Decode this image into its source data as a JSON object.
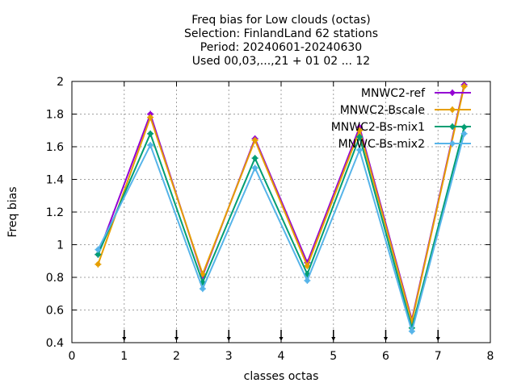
{
  "chart_data": {
    "type": "line",
    "title_lines": [
      "Freq bias  for Low clouds (octas)",
      "Selection: FinlandLand     62 stations",
      "Period: 20240601-20240630",
      "Used 00,03,...,21 + 01 02 ... 12"
    ],
    "xlabel": "classes octas",
    "ylabel": "Freq bias",
    "xlim": [
      0,
      8
    ],
    "ylim": [
      0.4,
      2.0
    ],
    "xticks": [
      0,
      1,
      2,
      3,
      4,
      5,
      6,
      7,
      8
    ],
    "yticks": [
      0.4,
      0.6,
      0.8,
      1.0,
      1.2,
      1.4,
      1.6,
      1.8,
      2.0
    ],
    "xtick_labels": [
      "0",
      "1",
      "2",
      "3",
      "4",
      "5",
      "6",
      "7",
      "8"
    ],
    "ytick_labels": [
      "0.4",
      "0.6",
      "0.8",
      "1",
      "1.2",
      "1.4",
      "1.6",
      "1.8",
      "2"
    ],
    "grid": true,
    "legend_position": "top-right",
    "x": [
      0.5,
      1.5,
      2.5,
      3.5,
      4.5,
      5.5,
      6.5,
      7.5
    ],
    "bottom_markers_x": [
      1,
      2,
      3,
      4,
      5,
      6,
      7
    ],
    "series": [
      {
        "name": "MNWC2-ref",
        "color": "#9400d3",
        "values": [
          0.94,
          1.8,
          0.81,
          1.65,
          0.89,
          1.72,
          0.54,
          1.98
        ]
      },
      {
        "name": "MNWC2-Bscale",
        "color": "#e69f00",
        "values": [
          0.88,
          1.78,
          0.82,
          1.64,
          0.87,
          1.7,
          0.53,
          1.97
        ]
      },
      {
        "name": "MNWC2-Bs-mix1",
        "color": "#009e73",
        "values": [
          0.94,
          1.68,
          0.77,
          1.53,
          0.82,
          1.66,
          0.49,
          1.72
        ]
      },
      {
        "name": "MNWC-Bs-mix2",
        "color": "#56b4e9",
        "values": [
          0.97,
          1.61,
          0.73,
          1.47,
          0.78,
          1.58,
          0.47,
          1.68
        ]
      }
    ]
  }
}
